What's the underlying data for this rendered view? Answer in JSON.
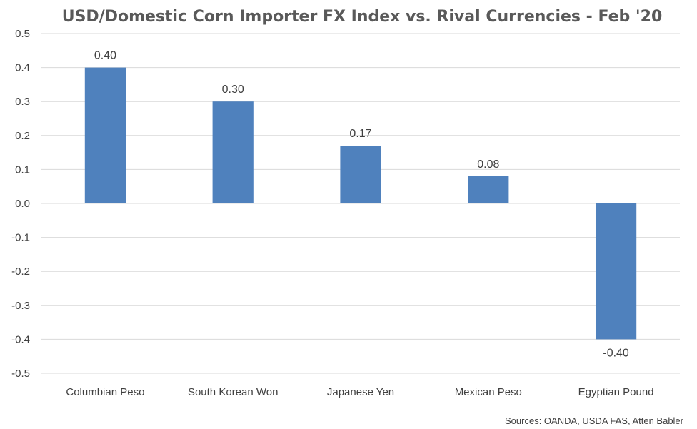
{
  "chart_data": {
    "type": "bar",
    "title": "USD/Domestic Corn Importer FX Index vs. Rival Currencies - Feb '20",
    "categories": [
      "Columbian Peso",
      "South Korean Won",
      "Japanese Yen",
      "Mexican Peso",
      "Egyptian Pound"
    ],
    "values": [
      0.4,
      0.3,
      0.17,
      0.08,
      -0.4
    ],
    "data_labels": [
      "0.40",
      "0.30",
      "0.17",
      "0.08",
      "-0.40"
    ],
    "ylim": [
      -0.5,
      0.5
    ],
    "yticks": [
      "0.5",
      "0.4",
      "0.3",
      "0.2",
      "0.1",
      "0.0",
      "-0.1",
      "-0.2",
      "-0.3",
      "-0.4",
      "-0.5"
    ],
    "ytick_values": [
      0.5,
      0.4,
      0.3,
      0.2,
      0.1,
      0.0,
      -0.1,
      -0.2,
      -0.3,
      -0.4,
      -0.5
    ],
    "grid": true,
    "bar_color": "#4f81bd",
    "source": "Sources: OANDA, USDA FAS, Atten Babler"
  }
}
